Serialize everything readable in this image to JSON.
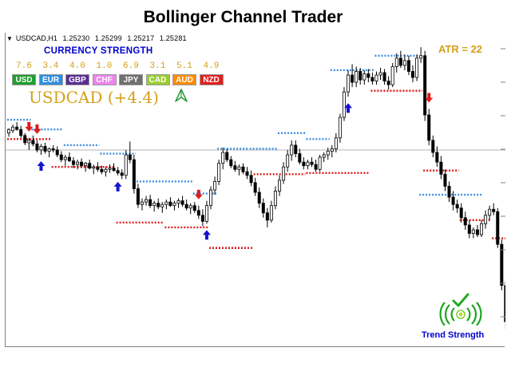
{
  "title": "Bollinger Channel Trader",
  "symbol": {
    "name": "USDCAD,H1",
    "open": "1.25230",
    "high": "1.25299",
    "low": "1.25217",
    "close": "1.25281"
  },
  "strength_panel": {
    "title": "CURRENCY STRENGTH",
    "currencies": [
      {
        "code": "USD",
        "value": "7.6",
        "color": "#1f9e2f"
      },
      {
        "code": "EUR",
        "value": "3.4",
        "color": "#2d8fe0"
      },
      {
        "code": "GBP",
        "value": "4.0",
        "color": "#5a2d91"
      },
      {
        "code": "CHF",
        "value": "1.0",
        "color": "#ee82ee"
      },
      {
        "code": "JPY",
        "value": "6.9",
        "color": "#6e6e6e"
      },
      {
        "code": "CAD",
        "value": "3.1",
        "color": "#9acd32"
      },
      {
        "code": "AUD",
        "value": "5.1",
        "color": "#ff8c00"
      },
      {
        "code": "NZD",
        "value": "4.9",
        "color": "#e01f1f"
      }
    ]
  },
  "pair_label": "USDCAD (+4.4)",
  "pair_arrow_icon": "up-arrow-icon",
  "atr_label": "ATR = 22",
  "trend_strength_label": "Trend Strength",
  "trend_strength_icon": "signal-wave-icon",
  "trend_check_icon": "check-icon",
  "colors": {
    "upper_channel": "#3c8ee0",
    "lower_channel": "#e01c1c",
    "candles": "#000000",
    "buy_arrow": "#1414d0",
    "sell_arrow": "#e01c1c",
    "accent_gold": "#d4a017"
  },
  "chart_data": {
    "type": "candlestick",
    "x_axis_labels": "none",
    "y_axis_labels": "none",
    "grid": false,
    "horizontal_reference_line": true,
    "candles": [
      [
        1.249,
        1.2494,
        1.2487,
        1.2493
      ],
      [
        1.2492,
        1.2497,
        1.249,
        1.2495
      ],
      [
        1.2495,
        1.2499,
        1.2492,
        1.2493
      ],
      [
        1.2493,
        1.2496,
        1.2486,
        1.2488
      ],
      [
        1.2488,
        1.249,
        1.248,
        1.2482
      ],
      [
        1.2482,
        1.2486,
        1.2476,
        1.2484
      ],
      [
        1.2484,
        1.2488,
        1.2479,
        1.2481
      ],
      [
        1.2481,
        1.2484,
        1.2474,
        1.2476
      ],
      [
        1.2476,
        1.2481,
        1.2472,
        1.2479
      ],
      [
        1.2479,
        1.2482,
        1.2473,
        1.2475
      ],
      [
        1.2475,
        1.2478,
        1.247,
        1.2477
      ],
      [
        1.2477,
        1.248,
        1.2474,
        1.2476
      ],
      [
        1.2476,
        1.2479,
        1.247,
        1.2472
      ],
      [
        1.2472,
        1.2475,
        1.2466,
        1.2468
      ],
      [
        1.2468,
        1.2472,
        1.2463,
        1.247
      ],
      [
        1.247,
        1.2474,
        1.2466,
        1.2467
      ],
      [
        1.2467,
        1.247,
        1.2461,
        1.2464
      ],
      [
        1.2464,
        1.2468,
        1.246,
        1.2466
      ],
      [
        1.2466,
        1.2469,
        1.2461,
        1.2463
      ],
      [
        1.2463,
        1.2466,
        1.2458,
        1.2465
      ],
      [
        1.2465,
        1.2468,
        1.246,
        1.2461
      ],
      [
        1.2461,
        1.2464,
        1.2456,
        1.2462
      ],
      [
        1.2462,
        1.2466,
        1.2458,
        1.246
      ],
      [
        1.246,
        1.2463,
        1.2456,
        1.2458
      ],
      [
        1.2458,
        1.2462,
        1.2454,
        1.246
      ],
      [
        1.246,
        1.2464,
        1.2457,
        1.2461
      ],
      [
        1.2461,
        1.2465,
        1.2458,
        1.2459
      ],
      [
        1.2459,
        1.2462,
        1.2455,
        1.2457
      ],
      [
        1.2457,
        1.246,
        1.2452,
        1.2455
      ],
      [
        1.2455,
        1.2476,
        1.2452,
        1.2472
      ],
      [
        1.2472,
        1.2483,
        1.2465,
        1.2468
      ],
      [
        1.2468,
        1.2472,
        1.244,
        1.2444
      ],
      [
        1.2444,
        1.2448,
        1.2428,
        1.2431
      ],
      [
        1.2431,
        1.2436,
        1.2426,
        1.2433
      ],
      [
        1.2433,
        1.2438,
        1.243,
        1.2435
      ],
      [
        1.2435,
        1.2439,
        1.2428,
        1.243
      ],
      [
        1.243,
        1.2434,
        1.2425,
        1.2432
      ],
      [
        1.2432,
        1.2436,
        1.2427,
        1.2429
      ],
      [
        1.2429,
        1.2433,
        1.2424,
        1.2431
      ],
      [
        1.2431,
        1.2435,
        1.2427,
        1.2433
      ],
      [
        1.2433,
        1.2437,
        1.2429,
        1.243
      ],
      [
        1.243,
        1.2434,
        1.2426,
        1.2432
      ],
      [
        1.2432,
        1.2436,
        1.2428,
        1.2434
      ],
      [
        1.2434,
        1.2438,
        1.2429,
        1.2431
      ],
      [
        1.2431,
        1.2435,
        1.2426,
        1.2428
      ],
      [
        1.2428,
        1.2432,
        1.2423,
        1.243
      ],
      [
        1.243,
        1.2433,
        1.2424,
        1.2426
      ],
      [
        1.2426,
        1.243,
        1.2419,
        1.2422
      ],
      [
        1.2422,
        1.2427,
        1.2413,
        1.2417
      ],
      [
        1.2417,
        1.2434,
        1.2415,
        1.243
      ],
      [
        1.243,
        1.2446,
        1.2427,
        1.2443
      ],
      [
        1.2443,
        1.2454,
        1.2439,
        1.245
      ],
      [
        1.245,
        1.2468,
        1.2447,
        1.2465
      ],
      [
        1.2465,
        1.2478,
        1.246,
        1.2474
      ],
      [
        1.2474,
        1.2477,
        1.2466,
        1.2468
      ],
      [
        1.2468,
        1.2471,
        1.2461,
        1.2463
      ],
      [
        1.2463,
        1.2467,
        1.2458,
        1.246
      ],
      [
        1.246,
        1.2464,
        1.2455,
        1.2462
      ],
      [
        1.2462,
        1.2465,
        1.2456,
        1.2458
      ],
      [
        1.2458,
        1.2462,
        1.2452,
        1.2455
      ],
      [
        1.2455,
        1.2459,
        1.2446,
        1.2449
      ],
      [
        1.2449,
        1.2453,
        1.2438,
        1.2441
      ],
      [
        1.2441,
        1.2445,
        1.2428,
        1.2432
      ],
      [
        1.2432,
        1.2436,
        1.242,
        1.2424
      ],
      [
        1.2424,
        1.2428,
        1.2412,
        1.2418
      ],
      [
        1.2418,
        1.2434,
        1.2416,
        1.243
      ],
      [
        1.243,
        1.2446,
        1.2427,
        1.2442
      ],
      [
        1.2442,
        1.2455,
        1.2438,
        1.2451
      ],
      [
        1.2451,
        1.2466,
        1.2448,
        1.2462
      ],
      [
        1.2462,
        1.2476,
        1.2458,
        1.2472
      ],
      [
        1.2472,
        1.2484,
        1.2467,
        1.248
      ],
      [
        1.248,
        1.2484,
        1.247,
        1.2473
      ],
      [
        1.2473,
        1.2477,
        1.2464,
        1.2466
      ],
      [
        1.2466,
        1.247,
        1.246,
        1.2463
      ],
      [
        1.2463,
        1.2468,
        1.246,
        1.2466
      ],
      [
        1.2466,
        1.247,
        1.2462,
        1.2464
      ],
      [
        1.2464,
        1.2468,
        1.2458,
        1.246
      ],
      [
        1.246,
        1.2472,
        1.2458,
        1.247
      ],
      [
        1.247,
        1.2474,
        1.2466,
        1.2472
      ],
      [
        1.2472,
        1.2478,
        1.2468,
        1.2475
      ],
      [
        1.2475,
        1.248,
        1.247,
        1.2477
      ],
      [
        1.2477,
        1.249,
        1.2474,
        1.2486
      ],
      [
        1.2486,
        1.2506,
        1.2482,
        1.2503
      ],
      [
        1.2503,
        1.2528,
        1.25,
        1.2524
      ],
      [
        1.2524,
        1.2542,
        1.252,
        1.2538
      ],
      [
        1.2538,
        1.2547,
        1.2528,
        1.2532
      ],
      [
        1.2532,
        1.2545,
        1.2528,
        1.2541
      ],
      [
        1.2541,
        1.2544,
        1.253,
        1.2534
      ],
      [
        1.2534,
        1.2542,
        1.253,
        1.2539
      ],
      [
        1.2539,
        1.2543,
        1.2532,
        1.2536
      ],
      [
        1.2536,
        1.254,
        1.253,
        1.2533
      ],
      [
        1.2533,
        1.2541,
        1.253,
        1.2538
      ],
      [
        1.2538,
        1.2544,
        1.2534,
        1.254
      ],
      [
        1.254,
        1.2543,
        1.253,
        1.2533
      ],
      [
        1.2533,
        1.2537,
        1.2526,
        1.253
      ],
      [
        1.253,
        1.2548,
        1.2528,
        1.2545
      ],
      [
        1.2545,
        1.2556,
        1.254,
        1.2552
      ],
      [
        1.2552,
        1.2558,
        1.2544,
        1.2546
      ],
      [
        1.2546,
        1.2555,
        1.2542,
        1.255
      ],
      [
        1.255,
        1.2554,
        1.2538,
        1.2541
      ],
      [
        1.2541,
        1.2546,
        1.2532,
        1.2536
      ],
      [
        1.2536,
        1.2555,
        1.2533,
        1.2552
      ],
      [
        1.2552,
        1.2561,
        1.2548,
        1.2554
      ],
      [
        1.2554,
        1.2558,
        1.25,
        1.2505
      ],
      [
        1.2505,
        1.251,
        1.248,
        1.2484
      ],
      [
        1.2484,
        1.2488,
        1.247,
        1.2474
      ],
      [
        1.2474,
        1.2479,
        1.2462,
        1.2466
      ],
      [
        1.2466,
        1.2471,
        1.2452,
        1.2456
      ],
      [
        1.2456,
        1.246,
        1.2442,
        1.2446
      ],
      [
        1.2446,
        1.245,
        1.2433,
        1.2437
      ],
      [
        1.2437,
        1.2442,
        1.2426,
        1.2431
      ],
      [
        1.2431,
        1.2435,
        1.2424,
        1.2428
      ],
      [
        1.2428,
        1.2432,
        1.2416,
        1.242
      ],
      [
        1.242,
        1.2425,
        1.241,
        1.2414
      ],
      [
        1.2414,
        1.2418,
        1.2403,
        1.2407
      ],
      [
        1.2407,
        1.2412,
        1.2403,
        1.241
      ],
      [
        1.241,
        1.2414,
        1.2404,
        1.2406
      ],
      [
        1.2406,
        1.2418,
        1.2404,
        1.2415
      ],
      [
        1.2415,
        1.2426,
        1.2411,
        1.2422
      ],
      [
        1.2422,
        1.243,
        1.2418,
        1.2427
      ],
      [
        1.2427,
        1.2432,
        1.2422,
        1.2425
      ],
      [
        1.2425,
        1.2428,
        1.2395,
        1.2398
      ],
      [
        1.2398,
        1.2402,
        1.236,
        1.2364
      ],
      [
        1.2364,
        1.2369,
        1.2328,
        1.2334
      ],
      [
        1.2334,
        1.2346,
        1.2322,
        1.234
      ],
      [
        1.234,
        1.2355,
        1.233,
        1.2338
      ]
    ],
    "upper_channel_segments": [
      {
        "from": 0,
        "to": 5,
        "level": 1.2501
      },
      {
        "from": 6,
        "to": 13,
        "level": 1.2493
      },
      {
        "from": 14,
        "to": 22,
        "level": 1.248
      },
      {
        "from": 23,
        "to": 31,
        "level": 1.2473
      },
      {
        "from": 32,
        "to": 45,
        "level": 1.245
      },
      {
        "from": 46,
        "to": 51,
        "level": 1.244
      },
      {
        "from": 52,
        "to": 59,
        "level": 1.2477
      },
      {
        "from": 60,
        "to": 66,
        "level": 1.2477
      },
      {
        "from": 67,
        "to": 73,
        "level": 1.249
      },
      {
        "from": 74,
        "to": 79,
        "level": 1.2485
      },
      {
        "from": 80,
        "to": 90,
        "level": 1.2542
      },
      {
        "from": 91,
        "to": 101,
        "level": 1.2554
      },
      {
        "from": 102,
        "to": 117,
        "level": 1.2439
      }
    ],
    "lower_channel_segments": [
      {
        "from": 0,
        "to": 10,
        "level": 1.2485
      },
      {
        "from": 11,
        "to": 26,
        "level": 1.2462
      },
      {
        "from": 27,
        "to": 38,
        "level": 1.2416
      },
      {
        "from": 39,
        "to": 49,
        "level": 1.2412
      },
      {
        "from": 50,
        "to": 60,
        "level": 1.2395
      },
      {
        "from": 61,
        "to": 73,
        "level": 1.2456
      },
      {
        "from": 74,
        "to": 89,
        "level": 1.2457
      },
      {
        "from": 90,
        "to": 102,
        "level": 1.2525
      },
      {
        "from": 103,
        "to": 111,
        "level": 1.2459
      },
      {
        "from": 112,
        "to": 119,
        "level": 1.2418
      },
      {
        "from": 120,
        "to": 123,
        "level": 1.2403
      }
    ],
    "buy_signals": [
      8,
      27,
      49,
      84
    ],
    "sell_signals": [
      5,
      7,
      47,
      104
    ],
    "reference_level": 1.2476
  }
}
